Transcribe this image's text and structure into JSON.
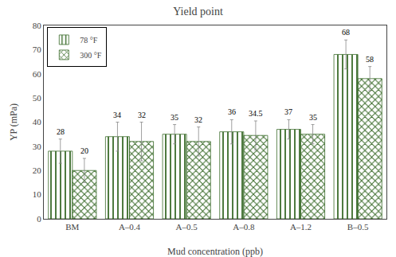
{
  "chart_data": {
    "type": "bar",
    "title": "Yield point",
    "xlabel": "Mud concentration (ppb)",
    "ylabel": "YP (mPa)",
    "categories": [
      "BM",
      "A–0.4",
      "A–0.5",
      "A–0.8",
      "A–1.2",
      "B–0.5"
    ],
    "series": [
      {
        "name": "78 °F",
        "color": "#d4e4b0",
        "values": [
          28,
          34,
          35,
          36,
          37,
          68
        ],
        "errors": [
          5,
          6,
          4,
          5,
          4,
          6
        ]
      },
      {
        "name": "300 °F",
        "color": "#d4e4b0",
        "values": [
          20,
          32,
          32,
          34.5,
          35,
          58
        ],
        "errors": [
          5,
          8,
          6,
          6,
          4,
          5
        ]
      }
    ],
    "ylim": [
      0,
      80
    ],
    "yticks": [
      0,
      10,
      20,
      30,
      40,
      50,
      60,
      70,
      80
    ],
    "grid": false,
    "legend": "upper left",
    "data_labels": true
  }
}
